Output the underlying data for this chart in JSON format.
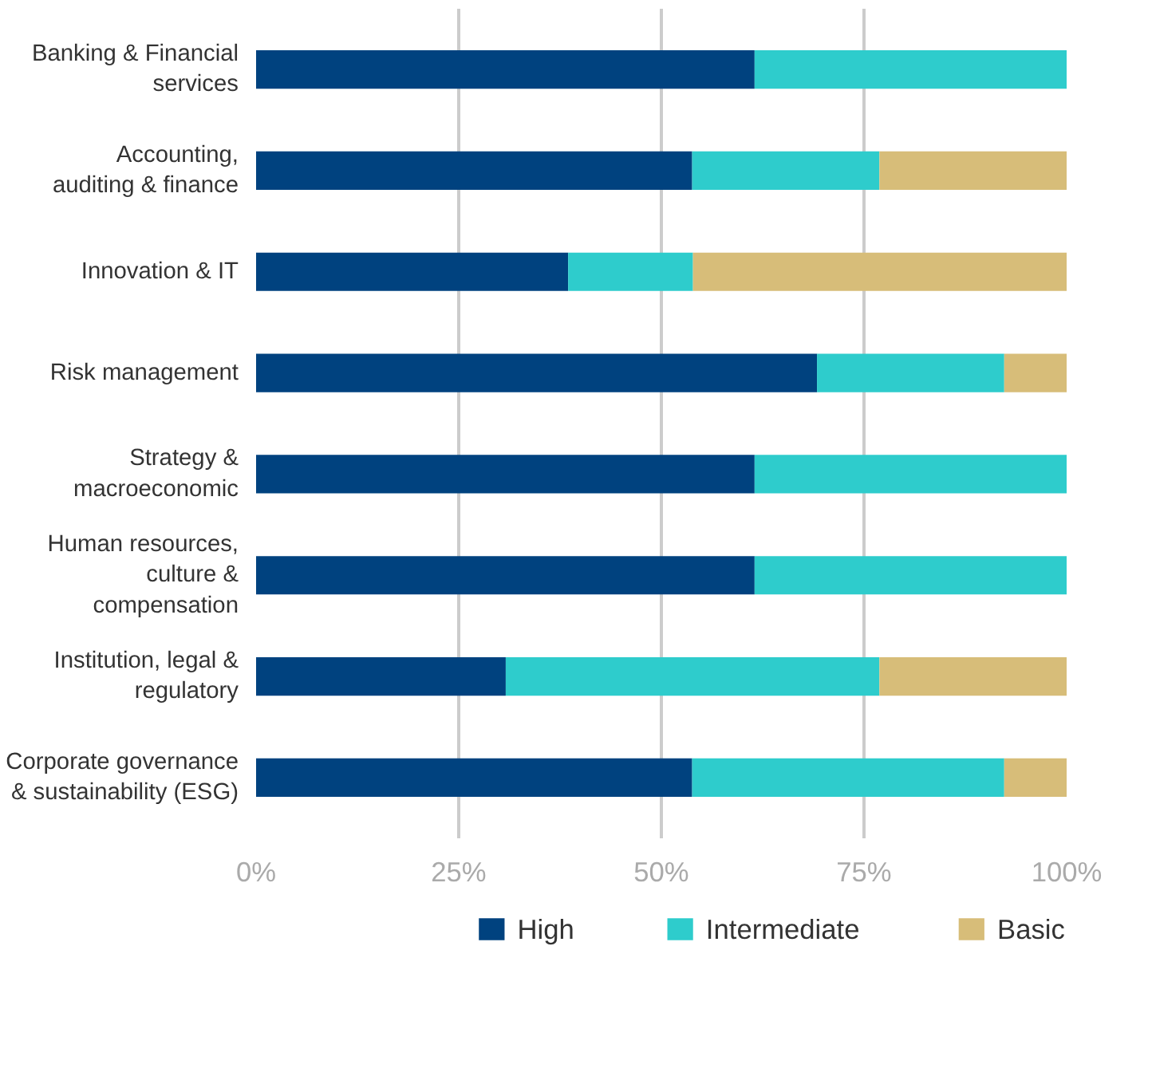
{
  "chart_data": {
    "type": "bar",
    "orientation": "horizontal",
    "stacked": true,
    "categories": [
      "Banking & Financial\nservices",
      "Accounting,\nauditing & finance",
      "Innovation & IT",
      "Risk management",
      "Strategy &\nmacroeconomic",
      "Human resources,\nculture &\ncompensation",
      "Institution, legal &\nregulatory",
      "Corporate governance\n& sustainability (ESG)"
    ],
    "series": [
      {
        "name": "High",
        "color": "#00427f",
        "values": [
          61.5,
          53.8,
          38.5,
          69.2,
          61.5,
          61.5,
          30.8,
          53.8
        ]
      },
      {
        "name": "Intermediate",
        "color": "#2ecccc",
        "values": [
          38.5,
          23.1,
          15.4,
          23.1,
          38.5,
          38.5,
          46.1,
          38.5
        ]
      },
      {
        "name": "Basic",
        "color": "#d7bd79",
        "values": [
          0,
          23.1,
          46.1,
          7.7,
          0,
          0,
          23.1,
          7.7
        ]
      }
    ],
    "xlim": [
      0,
      100
    ],
    "xticks": [
      {
        "value": 0,
        "label": "0%"
      },
      {
        "value": 25,
        "label": "25%"
      },
      {
        "value": 50,
        "label": "50%"
      },
      {
        "value": 75,
        "label": "75%"
      },
      {
        "value": 100,
        "label": "100%"
      }
    ],
    "grid": "x",
    "legend": "bottom"
  }
}
